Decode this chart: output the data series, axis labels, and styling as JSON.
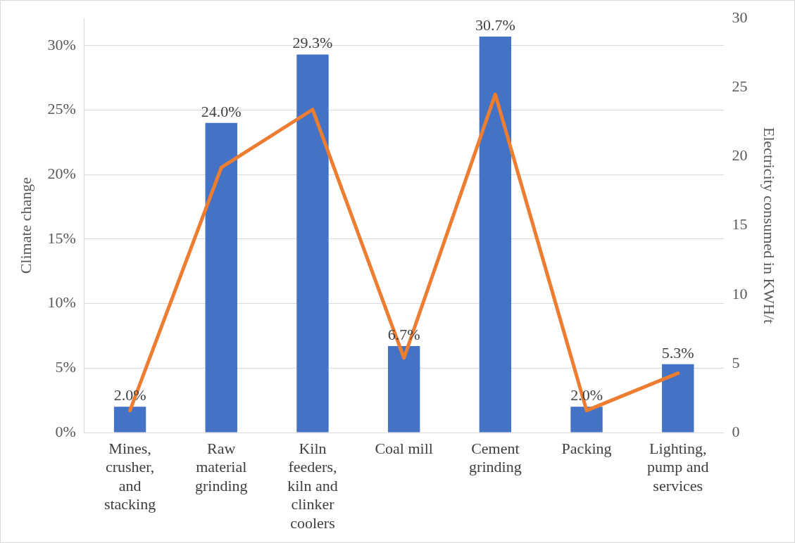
{
  "chart_data": {
    "type": "bar",
    "ylabel": "Climate change",
    "y2label": "Electricity consumed in KWH/t",
    "categories": [
      "Mines, crusher, and stacking",
      "Raw material grinding",
      "Kiln feeders, kiln and clinker coolers",
      "Coal mill",
      "Cement grinding",
      "Packing",
      "Lighting, pump and services"
    ],
    "series": [
      {
        "color": "#4472c4",
        "values": [
          2.0,
          24.0,
          29.3,
          6.7,
          30.7,
          2.0,
          5.3
        ],
        "value_labels": [
          "2.0%",
          "24.0%",
          "29.3%",
          "6.7%",
          "30.7%",
          "2.0%",
          "5.3%"
        ]
      },
      {
        "type": "line",
        "axis": "y2",
        "color": "#ed7d31",
        "values": [
          1.6,
          19.2,
          23.4,
          5.4,
          24.5,
          1.6,
          4.3
        ]
      }
    ],
    "ylim": [
      0,
      32.1
    ],
    "yticks": [
      {
        "value": 0,
        "label": "0%"
      },
      {
        "value": 5,
        "label": "5%"
      },
      {
        "value": 10,
        "label": "10%"
      },
      {
        "value": 15,
        "label": "15%"
      },
      {
        "value": 20,
        "label": "20%"
      },
      {
        "value": 25,
        "label": "25%"
      },
      {
        "value": 30,
        "label": "30%"
      }
    ],
    "y2lim": [
      0,
      30
    ],
    "y2ticks": [
      0,
      5,
      10,
      15,
      20,
      25,
      30
    ],
    "grid": "y",
    "legend": false,
    "marker": "none",
    "line_style": "solid"
  }
}
